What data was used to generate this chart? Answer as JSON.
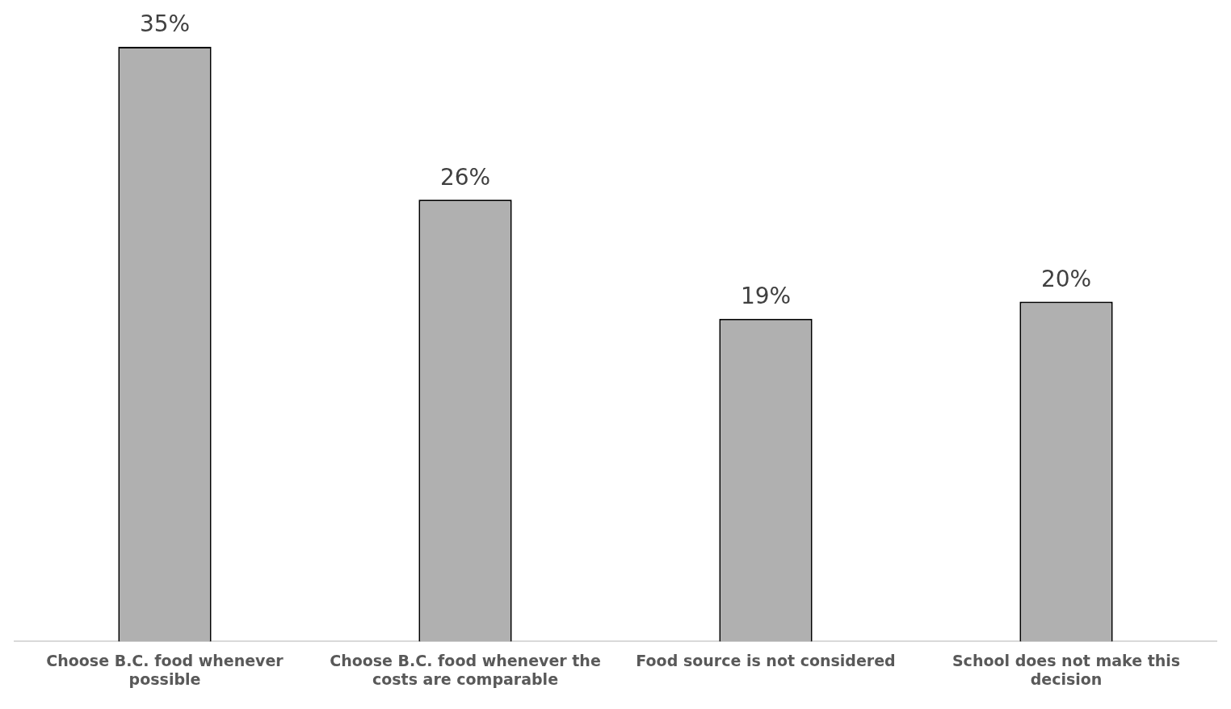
{
  "chart_data": {
    "type": "bar",
    "categories": [
      "Choose B.C. food whenever possible",
      "Choose B.C. food whenever the costs are comparable",
      "Food source is not considered",
      "School does not make this decision"
    ],
    "values": [
      35,
      26,
      19,
      20
    ],
    "value_labels": [
      "35%",
      "26%",
      "19%",
      "20%"
    ],
    "color": "#b0b0b0",
    "grid": false,
    "legend": false
  }
}
